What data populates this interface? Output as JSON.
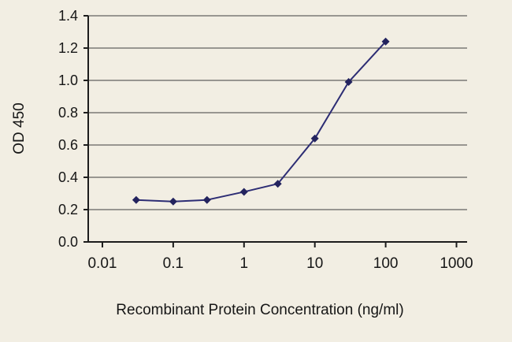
{
  "chart_data": {
    "type": "line",
    "title": "",
    "xlabel": "Recombinant Protein Concentration (ng/ml)",
    "ylabel": "OD 450",
    "xscale": "log",
    "xlim": [
      0.01,
      1000
    ],
    "ylim": [
      0,
      1.4
    ],
    "xtick_values": [
      0.01,
      0.1,
      1,
      10,
      100,
      1000
    ],
    "xtick_labels": [
      "0.01",
      "0.1",
      "1",
      "10",
      "100",
      "1000"
    ],
    "ytick_values": [
      0.0,
      0.2,
      0.4,
      0.6,
      0.8,
      1.0,
      1.2,
      1.4
    ],
    "ytick_labels": [
      "0.0",
      "0.2",
      "0.4",
      "0.6",
      "0.8",
      "1.0",
      "1.2",
      "1.4"
    ],
    "grid": "horizontal",
    "legend": "none",
    "marker": "diamond",
    "series": [
      {
        "name": "OD 450",
        "x": [
          0.03,
          0.1,
          0.3,
          1,
          3,
          10,
          30,
          100
        ],
        "y": [
          0.26,
          0.25,
          0.26,
          0.31,
          0.36,
          0.64,
          0.99,
          1.24
        ]
      }
    ],
    "colors": {
      "line": "#2d2d74",
      "marker": "#23235e",
      "axis": "#1c1c1c",
      "grid": "#3f3f3f",
      "background": "#f2eee3",
      "text": "#161616"
    }
  }
}
